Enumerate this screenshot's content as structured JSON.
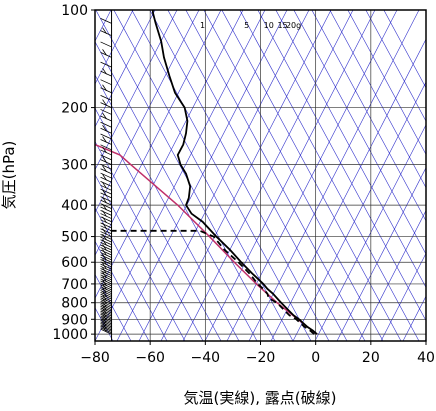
{
  "chart_data": {
    "type": "line",
    "xlabel": "気温(実線), 露点(破線)",
    "ylabel": "気圧(hPa)",
    "x_range": [
      -80,
      40
    ],
    "y_range_hPa": [
      100,
      1050
    ],
    "y_scale": "log (reversed)",
    "x_ticks": [
      -80,
      -60,
      -40,
      -20,
      0,
      20,
      40
    ],
    "x_tick_labels": [
      "−80",
      "−60",
      "−40",
      "−20",
      "0",
      "20",
      "40"
    ],
    "y_ticks": [
      100,
      200,
      300,
      400,
      500,
      600,
      700,
      800,
      900,
      1000
    ],
    "y_tick_labels": [
      "100",
      "200",
      "300",
      "400",
      "500",
      "600",
      "700",
      "800",
      "900",
      "1000"
    ],
    "mixing_ratio_labels": [
      "1",
      "5",
      "10",
      "15",
      "20g"
    ],
    "grid": true,
    "colors": {
      "temperature": "#000000",
      "dewpoint": "#000000",
      "isotherm_dry_adiabat": "#3333cc",
      "parcel_path": "#c0306a",
      "grid": "#333333"
    },
    "series": [
      {
        "style": "solid",
        "points": [
          {
            "p": 1000,
            "t": 0.5
          },
          {
            "p": 975,
            "t": -1
          },
          {
            "p": 950,
            "t": -3
          },
          {
            "p": 925,
            "t": -4.5
          },
          {
            "p": 900,
            "t": -6
          },
          {
            "p": 875,
            "t": -8
          },
          {
            "p": 850,
            "t": -9.5
          },
          {
            "p": 825,
            "t": -11
          },
          {
            "p": 800,
            "t": -12.5
          },
          {
            "p": 775,
            "t": -14
          },
          {
            "p": 750,
            "t": -15.5
          },
          {
            "p": 725,
            "t": -17.5
          },
          {
            "p": 700,
            "t": -19
          },
          {
            "p": 650,
            "t": -23
          },
          {
            "p": 600,
            "t": -27
          },
          {
            "p": 550,
            "t": -31
          },
          {
            "p": 500,
            "t": -36
          },
          {
            "p": 450,
            "t": -41
          },
          {
            "p": 425,
            "t": -45
          },
          {
            "p": 400,
            "t": -47
          },
          {
            "p": 380,
            "t": -46
          },
          {
            "p": 350,
            "t": -45.5
          },
          {
            "p": 320,
            "t": -47
          },
          {
            "p": 300,
            "t": -49
          },
          {
            "p": 280,
            "t": -50
          },
          {
            "p": 260,
            "t": -48
          },
          {
            "p": 240,
            "t": -47
          },
          {
            "p": 220,
            "t": -46.5
          },
          {
            "p": 200,
            "t": -47.5
          },
          {
            "p": 180,
            "t": -51
          },
          {
            "p": 160,
            "t": -53
          },
          {
            "p": 140,
            "t": -55
          },
          {
            "p": 125,
            "t": -56
          },
          {
            "p": 110,
            "t": -58
          },
          {
            "p": 102,
            "t": -59
          },
          {
            "p": 100,
            "t": -59
          }
        ]
      },
      {
        "style": "dashed",
        "points": [
          {
            "p": 1000,
            "t": -0.5
          },
          {
            "p": 975,
            "t": -2
          },
          {
            "p": 950,
            "t": -4
          },
          {
            "p": 925,
            "t": -5.5
          },
          {
            "p": 900,
            "t": -7
          },
          {
            "p": 875,
            "t": -9.5
          },
          {
            "p": 850,
            "t": -11
          },
          {
            "p": 825,
            "t": -12.5
          },
          {
            "p": 800,
            "t": -14
          },
          {
            "p": 775,
            "t": -17
          },
          {
            "p": 750,
            "t": -17.5
          },
          {
            "p": 725,
            "t": -19
          },
          {
            "p": 700,
            "t": -21
          },
          {
            "p": 650,
            "t": -24
          },
          {
            "p": 600,
            "t": -28
          },
          {
            "p": 550,
            "t": -33
          },
          {
            "p": 500,
            "t": -37
          },
          {
            "p": 480,
            "t": -42
          },
          {
            "p": 480,
            "t": -74
          },
          {
            "p": 470,
            "t": -75
          }
        ]
      }
    ],
    "parcel_path": [
      {
        "p": 1000,
        "t": 0.5
      },
      {
        "p": 900,
        "t": -6.5
      },
      {
        "p": 800,
        "t": -14
      },
      {
        "p": 700,
        "t": -21.5
      },
      {
        "p": 600,
        "t": -29.5
      },
      {
        "p": 500,
        "t": -38.5
      },
      {
        "p": 400,
        "t": -50
      },
      {
        "p": 300,
        "t": -67
      },
      {
        "p": 280,
        "t": -71
      },
      {
        "p": 260,
        "t": -80
      }
    ],
    "wind_barbs": "column of wind barbs along left edge near x = -74"
  }
}
